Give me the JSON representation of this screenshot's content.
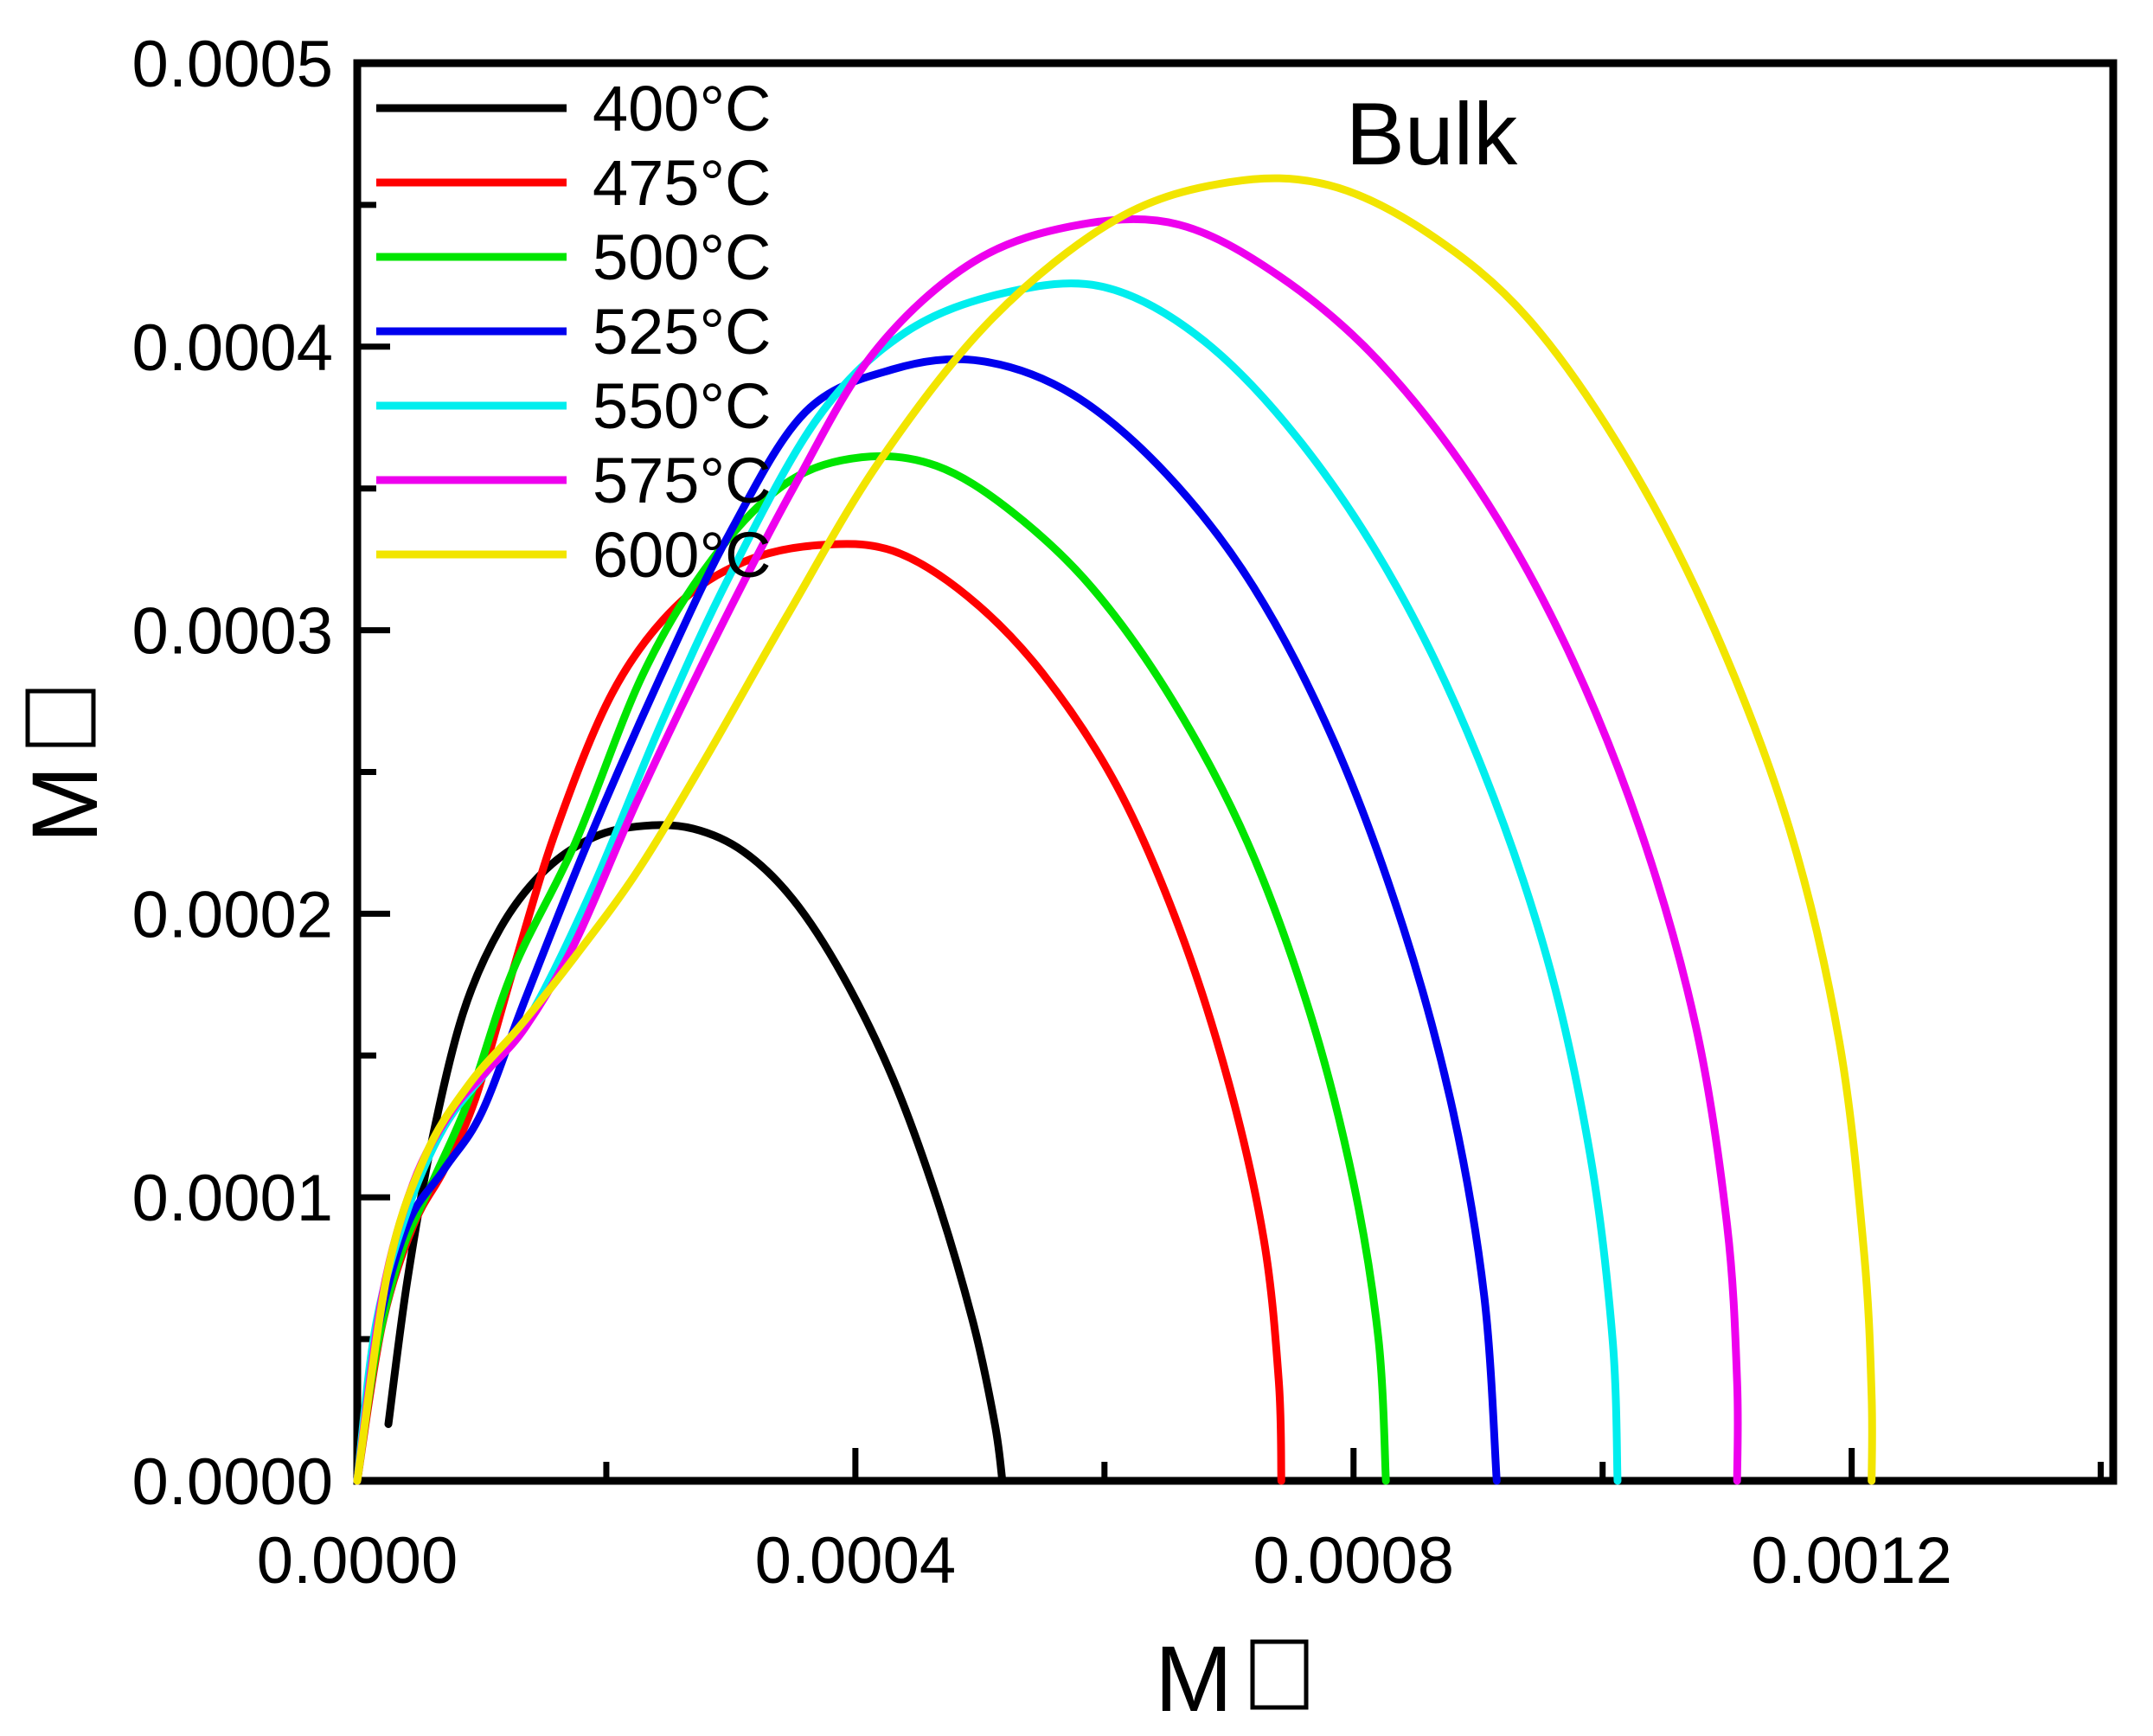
{
  "title": "Bulk",
  "chart_data": {
    "type": "line",
    "title": "Bulk",
    "xlabel": "M□",
    "ylabel": "M□",
    "xlabel_note": "axis label rendered as letter M plus missing-glyph box (tofu), likely M prime",
    "ylabel_note": "axis label rendered as letter M plus missing-glyph box (tofu), likely M double prime",
    "xlim": [
      0.0,
      0.00141
    ],
    "ylim": [
      0.0,
      0.0005
    ],
    "grid": false,
    "legend_position": "top-left-inside",
    "x_axis": {
      "major_ticks": [
        0.0,
        0.0004,
        0.0008,
        0.0012
      ],
      "major_tick_labels": [
        "0.0000",
        "0.0004",
        "0.0008",
        "0.0012"
      ],
      "minor_ticks": [
        0.0002,
        0.0006,
        0.001,
        0.0014
      ]
    },
    "y_axis": {
      "major_ticks": [
        0.0,
        0.0001,
        0.0002,
        0.0003,
        0.0004,
        0.0005
      ],
      "major_tick_labels": [
        "0.0000",
        "0.0001",
        "0.0002",
        "0.0003",
        "0.0004",
        "0.0005"
      ],
      "minor_ticks": [
        5e-05,
        0.00015,
        0.00025,
        0.00035,
        0.00045
      ]
    },
    "series": [
      {
        "name": "400°C",
        "color": "#000000",
        "peak": [
          0.00026,
          0.000231
        ],
        "x_intercept": 0.00052,
        "points": [
          [
            2.5e-05,
            2e-05
          ],
          [
            4e-05,
            7e-05
          ],
          [
            6e-05,
            0.00012
          ],
          [
            8.5e-05,
            0.000165
          ],
          [
            0.000115,
            0.000195
          ],
          [
            0.00015,
            0.000215
          ],
          [
            0.00019,
            0.000227
          ],
          [
            0.00023,
            0.000231
          ],
          [
            0.00027,
            0.00023
          ],
          [
            0.00031,
            0.000222
          ],
          [
            0.00035,
            0.000205
          ],
          [
            0.00039,
            0.000178
          ],
          [
            0.00043,
            0.000142
          ],
          [
            0.000465,
            0.0001
          ],
          [
            0.000495,
            5.5e-05
          ],
          [
            0.000512,
            2e-05
          ],
          [
            0.000518,
            0.0
          ]
        ]
      },
      {
        "name": "475°C",
        "color": "#ff0000",
        "peak": [
          0.00039,
          0.00033
        ],
        "x_intercept": 0.000742,
        "points": [
          [
            0.0,
            0.0
          ],
          [
            2e-05,
            5.5e-05
          ],
          [
            4.5e-05,
            9e-05
          ],
          [
            7e-05,
            0.00011
          ],
          [
            9.5e-05,
            0.000135
          ],
          [
            0.000125,
            0.00018
          ],
          [
            0.00016,
            0.00023
          ],
          [
            0.000205,
            0.000278
          ],
          [
            0.000255,
            0.000308
          ],
          [
            0.00031,
            0.000324
          ],
          [
            0.00037,
            0.00033
          ],
          [
            0.00043,
            0.000328
          ],
          [
            0.00049,
            0.000312
          ],
          [
            0.00055,
            0.000285
          ],
          [
            0.00061,
            0.000245
          ],
          [
            0.00066,
            0.000195
          ],
          [
            0.0007,
            0.00014
          ],
          [
            0.000728,
            8.5e-05
          ],
          [
            0.00074,
            3.5e-05
          ],
          [
            0.000742,
            0.0
          ]
        ]
      },
      {
        "name": "500°C",
        "color": "#00e500",
        "peak": [
          0.000415,
          0.000361
        ],
        "x_intercept": 0.000826,
        "points": [
          [
            0.0,
            0.0
          ],
          [
            1.5e-05,
            4.5e-05
          ],
          [
            3.5e-05,
            8e-05
          ],
          [
            6e-05,
            0.000105
          ],
          [
            9e-05,
            0.000135
          ],
          [
            0.000125,
            0.00018
          ],
          [
            0.000175,
            0.000225
          ],
          [
            0.00023,
            0.000285
          ],
          [
            0.000285,
            0.000325
          ],
          [
            0.000345,
            0.000352
          ],
          [
            0.000405,
            0.000361
          ],
          [
            0.000465,
            0.000358
          ],
          [
            0.000525,
            0.000342
          ],
          [
            0.00059,
            0.000315
          ],
          [
            0.000655,
            0.000275
          ],
          [
            0.000715,
            0.000225
          ],
          [
            0.000765,
            0.000165
          ],
          [
            0.0008,
            0.000105
          ],
          [
            0.00082,
            5e-05
          ],
          [
            0.000826,
            0.0
          ]
        ]
      },
      {
        "name": "525°C",
        "color": "#0000ee",
        "peak": [
          0.0005,
          0.000395
        ],
        "x_intercept": 0.000915,
        "points": [
          [
            0.0,
            0.0
          ],
          [
            1.5e-05,
            5e-05
          ],
          [
            4e-05,
            9e-05
          ],
          [
            7e-05,
            0.00011
          ],
          [
            0.0001,
            0.00013
          ],
          [
            0.000135,
            0.00017
          ],
          [
            0.000185,
            0.000225
          ],
          [
            0.000245,
            0.000285
          ],
          [
            0.0003,
            0.000335
          ],
          [
            0.00036,
            0.000377
          ],
          [
            0.00043,
            0.000392
          ],
          [
            0.0005,
            0.000395
          ],
          [
            0.000575,
            0.000383
          ],
          [
            0.00065,
            0.000355
          ],
          [
            0.00072,
            0.000315
          ],
          [
            0.000785,
            0.00026
          ],
          [
            0.00084,
            0.000195
          ],
          [
            0.00088,
            0.00013
          ],
          [
            0.000905,
            6.5e-05
          ],
          [
            0.000915,
            0.0
          ]
        ]
      },
      {
        "name": "550°C",
        "color": "#00eeee",
        "peak": [
          0.00056,
          0.000421
        ],
        "x_intercept": 0.001012,
        "points": [
          [
            0.0,
            0.0
          ],
          [
            1.5e-05,
            5.5e-05
          ],
          [
            4e-05,
            9.5e-05
          ],
          [
            7e-05,
            0.000125
          ],
          [
            0.000105,
            0.000145
          ],
          [
            0.00014,
            0.000165
          ],
          [
            0.00019,
            0.00021
          ],
          [
            0.000245,
            0.000268
          ],
          [
            0.0003,
            0.00032
          ],
          [
            0.00037,
            0.000375
          ],
          [
            0.00044,
            0.000405
          ],
          [
            0.00052,
            0.000419
          ],
          [
            0.0006,
            0.000421
          ],
          [
            0.00068,
            0.000402
          ],
          [
            0.00076,
            0.000365
          ],
          [
            0.000835,
            0.000315
          ],
          [
            0.0009,
            0.000255
          ],
          [
            0.000955,
            0.000185
          ],
          [
            0.00099,
            0.000115
          ],
          [
            0.001008,
            5e-05
          ],
          [
            0.001012,
            0.0
          ]
        ]
      },
      {
        "name": "575°C",
        "color": "#ee00ee",
        "peak": [
          0.00062,
          0.000443
        ],
        "x_intercept": 0.001108,
        "points": [
          [
            0.0,
            0.0
          ],
          [
            2e-05,
            6.5e-05
          ],
          [
            4.5e-05,
            0.000105
          ],
          [
            7.5e-05,
            0.00013
          ],
          [
            0.000105,
            0.000145
          ],
          [
            0.000135,
            0.00016
          ],
          [
            0.000175,
            0.00019
          ],
          [
            0.000225,
            0.00024
          ],
          [
            0.000285,
            0.000295
          ],
          [
            0.00035,
            0.00035
          ],
          [
            0.000415,
            0.000398
          ],
          [
            0.000495,
            0.00043
          ],
          [
            0.00058,
            0.000443
          ],
          [
            0.00066,
            0.000443
          ],
          [
            0.00074,
            0.000425
          ],
          [
            0.00082,
            0.000395
          ],
          [
            0.0009,
            0.00035
          ],
          [
            0.00097,
            0.000295
          ],
          [
            0.00103,
            0.00023
          ],
          [
            0.001075,
            0.00016
          ],
          [
            0.0011,
            9e-05
          ],
          [
            0.001108,
            3.5e-05
          ],
          [
            0.001108,
            0.0
          ]
        ]
      },
      {
        "name": "600°C",
        "color": "#f2e500",
        "peak": [
          0.000745,
          0.000458
        ],
        "x_intercept": 0.001216,
        "points": [
          [
            0.0,
            0.0
          ],
          [
            2.5e-05,
            7.5e-05
          ],
          [
            5.5e-05,
            0.000115
          ],
          [
            9e-05,
            0.00014
          ],
          [
            0.00013,
            0.00016
          ],
          [
            0.000175,
            0.000185
          ],
          [
            0.000225,
            0.000215
          ],
          [
            0.00028,
            0.000255
          ],
          [
            0.000345,
            0.000305
          ],
          [
            0.00042,
            0.00036
          ],
          [
            0.00051,
            0.00041
          ],
          [
            0.00061,
            0.000445
          ],
          [
            0.0007,
            0.000458
          ],
          [
            0.00078,
            0.000457
          ],
          [
            0.00086,
            0.00044
          ],
          [
            0.00094,
            0.00041
          ],
          [
            0.00102,
            0.00036
          ],
          [
            0.00109,
            0.0003
          ],
          [
            0.00115,
            0.00023
          ],
          [
            0.00119,
            0.000155
          ],
          [
            0.00121,
            8e-05
          ],
          [
            0.001216,
            3e-05
          ],
          [
            0.001216,
            0.0
          ]
        ]
      }
    ]
  },
  "legend": {
    "items": [
      {
        "label": "400°C",
        "color": "#000000"
      },
      {
        "label": "475°C",
        "color": "#ff0000"
      },
      {
        "label": "500°C",
        "color": "#00e500"
      },
      {
        "label": "525°C",
        "color": "#0000ee"
      },
      {
        "label": "550°C",
        "color": "#00eeee"
      },
      {
        "label": "575°C",
        "color": "#ee00ee"
      },
      {
        "label": "600°C",
        "color": "#f2e500"
      }
    ]
  }
}
